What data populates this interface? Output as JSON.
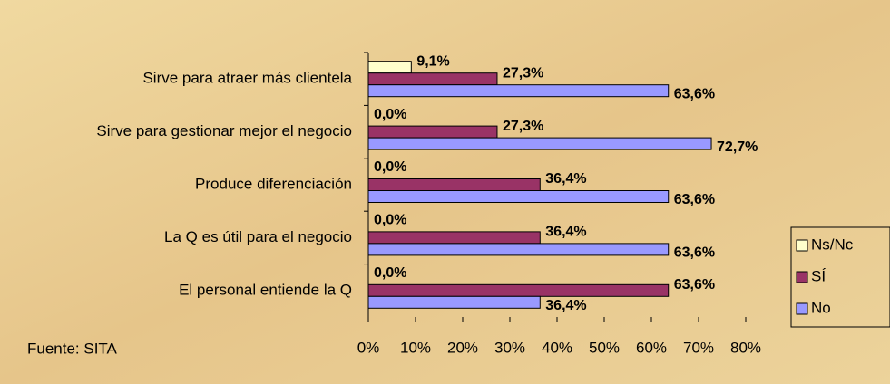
{
  "chart_data": {
    "type": "bar",
    "orientation": "horizontal",
    "categories": [
      "Sirve para atraer más clientela",
      "Sirve para gestionar mejor el negocio",
      "Produce diferenciación",
      "La Q es útil para el negocio",
      "El personal entiende la Q"
    ],
    "series": [
      {
        "name": "Ns/Nc",
        "color": "#ffffcc",
        "values": [
          9.1,
          0,
          0,
          0,
          0
        ],
        "value_labels": [
          "9,1%",
          "0,0%",
          "0,0%",
          "0,0%",
          "0,0%"
        ]
      },
      {
        "name": "SÍ",
        "color": "#993366",
        "values": [
          27.3,
          27.3,
          36.4,
          36.4,
          63.6
        ],
        "value_labels": [
          "27,3%",
          "27,3%",
          "36,4%",
          "36,4%",
          "63,6%"
        ]
      },
      {
        "name": "No",
        "color": "#9999ff",
        "values": [
          63.6,
          72.7,
          63.6,
          63.6,
          36.4
        ],
        "value_labels": [
          "63,6%",
          "72,7%",
          "63,6%",
          "63,6%",
          "36,4%"
        ]
      }
    ],
    "xlim": [
      0,
      80
    ],
    "xticks": [
      {
        "value": 0,
        "label": "0%"
      },
      {
        "value": 10,
        "label": "10%"
      },
      {
        "value": 20,
        "label": "20%"
      },
      {
        "value": 30,
        "label": "30%"
      },
      {
        "value": 40,
        "label": "40%"
      },
      {
        "value": 50,
        "label": "50%"
      },
      {
        "value": 60,
        "label": "60%"
      },
      {
        "value": 70,
        "label": "70%"
      },
      {
        "value": 80,
        "label": "80%"
      }
    ],
    "legend": "right",
    "source": "Fuente: SITA"
  }
}
